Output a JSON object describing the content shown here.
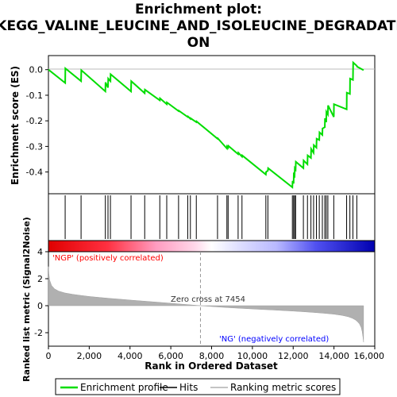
{
  "title_lines": [
    "Enrichment plot:",
    "KEGG_VALINE_LEUCINE_AND_ISOLEUCINE_DEGRADATI",
    "ON"
  ],
  "colors": {
    "profile": "#00dd00",
    "hits": "#000000",
    "metric_fill": "#b0b0b0",
    "positive_label": "#ff0000",
    "negative_label": "#0000ff",
    "zero_line": "#bbbbbb"
  },
  "chart_data": [
    {
      "type": "line",
      "panel": "enrichment-profile",
      "ylabel": "Enrichment score (ES)",
      "xlim": [
        0,
        16000
      ],
      "ylim": [
        -0.485,
        0.055
      ],
      "yticks": [
        0.0,
        -0.1,
        -0.2,
        -0.3,
        -0.4
      ],
      "ytick_labels": [
        "0.0",
        "-0.1",
        "-0.2",
        "-0.3",
        "-0.4"
      ],
      "grid": false,
      "series": [
        {
          "name": "Enrichment profile",
          "x": [
            0,
            820,
            830,
            1600,
            1610,
            2790,
            2800,
            2920,
            2930,
            3040,
            3050,
            4050,
            4060,
            4720,
            4730,
            5460,
            5470,
            5800,
            5810,
            6380,
            6390,
            6830,
            6840,
            6960,
            6970,
            7250,
            7260,
            8290,
            8300,
            8750,
            8760,
            8810,
            8820,
            9300,
            9310,
            9490,
            9500,
            10660,
            10670,
            10760,
            10770,
            11960,
            11970,
            12020,
            12030,
            12070,
            12080,
            12120,
            12130,
            12500,
            12510,
            12700,
            12710,
            12870,
            12880,
            13000,
            13010,
            13140,
            13150,
            13280,
            13290,
            13430,
            13440,
            13550,
            13560,
            13620,
            13630,
            13700,
            13710,
            13990,
            14000,
            14620,
            14630,
            14780,
            14790,
            14930,
            14940,
            15120,
            15130,
            15450
          ],
          "y": [
            0.0,
            -0.052,
            0.005,
            -0.045,
            -0.002,
            -0.085,
            -0.05,
            -0.07,
            -0.035,
            -0.045,
            -0.018,
            -0.085,
            -0.045,
            -0.092,
            -0.078,
            -0.12,
            -0.112,
            -0.135,
            -0.128,
            -0.162,
            -0.16,
            -0.185,
            -0.183,
            -0.192,
            -0.19,
            -0.205,
            -0.202,
            -0.27,
            -0.268,
            -0.308,
            -0.3,
            -0.305,
            -0.298,
            -0.33,
            -0.325,
            -0.34,
            -0.335,
            -0.41,
            -0.4,
            -0.395,
            -0.385,
            -0.46,
            -0.435,
            -0.445,
            -0.41,
            -0.415,
            -0.385,
            -0.39,
            -0.36,
            -0.385,
            -0.355,
            -0.37,
            -0.335,
            -0.345,
            -0.31,
            -0.325,
            -0.295,
            -0.305,
            -0.27,
            -0.275,
            -0.245,
            -0.255,
            -0.23,
            -0.225,
            -0.19,
            -0.205,
            -0.165,
            -0.175,
            -0.14,
            -0.185,
            -0.135,
            -0.155,
            -0.09,
            -0.095,
            -0.035,
            -0.04,
            0.028,
            0.015,
            0.012,
            -0.002
          ]
        }
      ]
    },
    {
      "type": "scatter",
      "panel": "hits",
      "name": "Hits",
      "x": [
        820,
        1600,
        2790,
        2920,
        3040,
        4050,
        4720,
        5460,
        5800,
        6380,
        6830,
        6960,
        7250,
        8290,
        8750,
        8810,
        9300,
        9490,
        10660,
        10760,
        11960,
        12020,
        12070,
        12120,
        12500,
        12700,
        12870,
        13000,
        13140,
        13280,
        13430,
        13550,
        13620,
        13700,
        13990,
        14620,
        14780,
        14930,
        15120
      ]
    },
    {
      "type": "area",
      "panel": "ranked-metric",
      "name": "Ranking metric scores",
      "xlabel": "Rank in Ordered Dataset",
      "ylabel": "Ranked list metric (Signal2Noise)",
      "xlim": [
        0,
        16000
      ],
      "ylim": [
        -3.0,
        4.0
      ],
      "xticks": [
        0,
        2000,
        4000,
        6000,
        8000,
        10000,
        12000,
        14000,
        16000
      ],
      "xtick_labels": [
        "0",
        "2,000",
        "4,000",
        "6,000",
        "8,000",
        "10,000",
        "12,000",
        "14,000",
        "16,000"
      ],
      "yticks": [
        4,
        2,
        0,
        -2
      ],
      "ytick_labels": [
        "4",
        "2",
        "0",
        "-2"
      ],
      "total_rank": 15450,
      "x": [
        0,
        20,
        60,
        150,
        300,
        500,
        800,
        1200,
        1600,
        2000,
        2500,
        3000,
        3500,
        4000,
        4500,
        5000,
        5500,
        6000,
        6500,
        7000,
        7454,
        8000,
        8500,
        9000,
        9500,
        10000,
        10500,
        11000,
        11500,
        12000,
        12500,
        13000,
        13500,
        14000,
        14400,
        14700,
        14900,
        15050,
        15150,
        15250,
        15330,
        15380,
        15420,
        15450
      ],
      "values": [
        2.9,
        2.4,
        1.9,
        1.5,
        1.25,
        1.08,
        0.95,
        0.84,
        0.76,
        0.68,
        0.61,
        0.54,
        0.48,
        0.42,
        0.36,
        0.3,
        0.24,
        0.18,
        0.12,
        0.06,
        0.0,
        -0.06,
        -0.11,
        -0.16,
        -0.2,
        -0.24,
        -0.28,
        -0.32,
        -0.36,
        -0.4,
        -0.45,
        -0.5,
        -0.56,
        -0.63,
        -0.72,
        -0.82,
        -0.93,
        -1.05,
        -1.18,
        -1.35,
        -1.6,
        -1.9,
        -2.3,
        -2.7
      ],
      "annotations": {
        "positive": "'NGP' (positively correlated)",
        "negative": "'NG' (negatively correlated)",
        "zero_cross": "Zero cross at 7454"
      }
    }
  ],
  "legend": {
    "items": [
      {
        "label": "Enrichment profile",
        "kind": "line",
        "color": "#00dd00"
      },
      {
        "label": "Hits",
        "kind": "line",
        "color": "#000000"
      },
      {
        "label": "Ranking metric scores",
        "kind": "line",
        "color": "#b0b0b0"
      }
    ]
  }
}
